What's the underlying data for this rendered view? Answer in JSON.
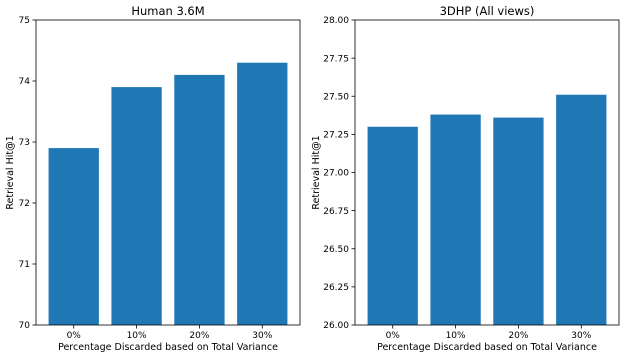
{
  "chart_data": [
    {
      "type": "bar",
      "title": "Human 3.6M",
      "xlabel": "Percentage Discarded based on Total Variance",
      "ylabel": "Retrieval Hit@1",
      "categories": [
        "0%",
        "10%",
        "20%",
        "30%"
      ],
      "values": [
        72.9,
        73.9,
        74.1,
        74.3
      ],
      "ylim": [
        70,
        75
      ],
      "yticks": [
        "70",
        "71",
        "72",
        "73",
        "74",
        "75"
      ],
      "color": "#1f77b4",
      "grid": false
    },
    {
      "type": "bar",
      "title": "3DHP (All views)",
      "xlabel": "Percentage Discarded based on Total Variance",
      "ylabel": "Retrieval Hit@1",
      "categories": [
        "0%",
        "10%",
        "20%",
        "30%"
      ],
      "values": [
        27.3,
        27.38,
        27.36,
        27.51
      ],
      "ylim": [
        26.0,
        28.0
      ],
      "yticks": [
        "26.00",
        "26.25",
        "26.50",
        "26.75",
        "27.00",
        "27.25",
        "27.50",
        "27.75",
        "28.00"
      ],
      "color": "#1f77b4",
      "grid": false
    }
  ]
}
